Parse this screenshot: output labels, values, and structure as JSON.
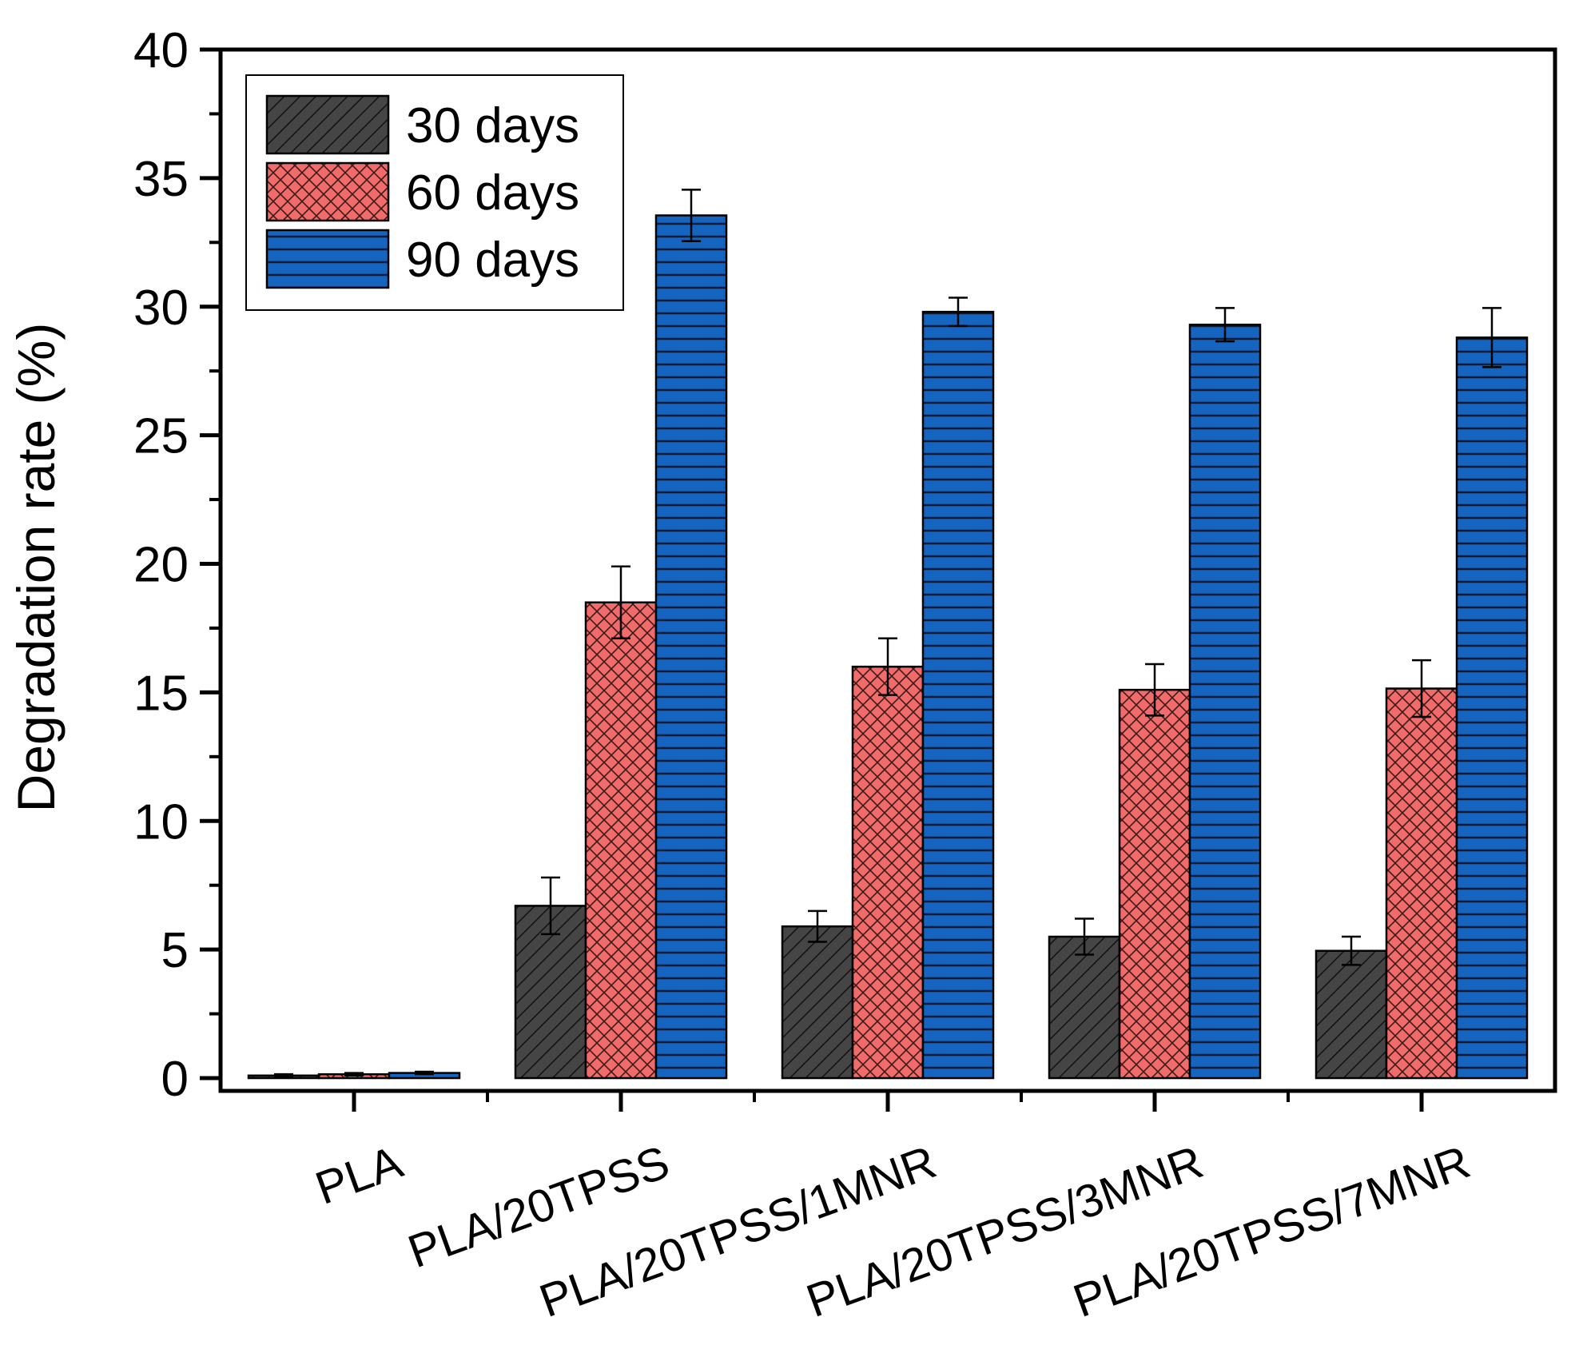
{
  "chart_data": {
    "type": "bar",
    "title": "",
    "xlabel": "",
    "ylabel": "Degradation rate (%)",
    "ylim": [
      0,
      40
    ],
    "yticks": [
      0,
      5,
      10,
      15,
      20,
      25,
      30,
      35,
      40
    ],
    "grid": false,
    "legend_position": "top-left",
    "categories": [
      "PLA",
      "PLA/20TPSS",
      "PLA/20TPSS/1MNR",
      "PLA/20TPSS/3MNR",
      "PLA/20TPSS/7MNR"
    ],
    "series": [
      {
        "name": "30 days",
        "color": "#454545",
        "pattern": "diagonal-hatch",
        "values": [
          0.1,
          6.7,
          5.9,
          5.5,
          4.95
        ],
        "errors": [
          0.05,
          1.1,
          0.6,
          0.7,
          0.55
        ]
      },
      {
        "name": "60 days",
        "color": "#f26b6b",
        "pattern": "crosshatch",
        "values": [
          0.15,
          18.5,
          16.0,
          15.1,
          15.15
        ],
        "errors": [
          0.05,
          1.4,
          1.1,
          1.0,
          1.1
        ]
      },
      {
        "name": "90 days",
        "color": "#1565c0",
        "pattern": "horizontal-lines",
        "values": [
          0.2,
          33.55,
          29.8,
          29.3,
          28.8
        ],
        "errors": [
          0.05,
          1.0,
          0.55,
          0.65,
          1.15
        ]
      }
    ]
  }
}
